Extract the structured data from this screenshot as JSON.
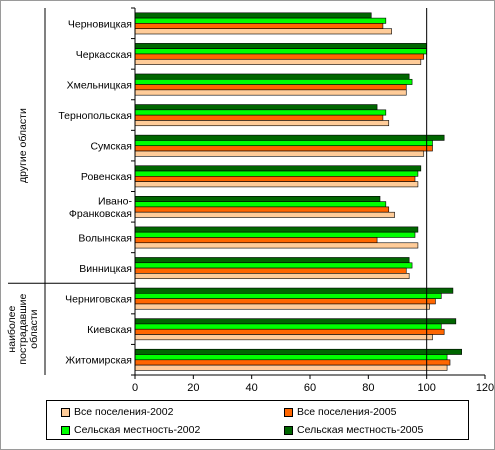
{
  "chart_data": {
    "type": "bar",
    "orientation": "horizontal",
    "categories": [
      "Черновицкая",
      "Черкасская",
      "Хмельницкая",
      "Тернопольская",
      "Сумская",
      "Ровенская",
      "Ивано-Франковская",
      "Волынская",
      "Винницкая",
      "Черниговская",
      "Киевская",
      "Житомирская"
    ],
    "category_lines": [
      [
        "Черновицкая"
      ],
      [
        "Черкасская"
      ],
      [
        "Хмельницкая"
      ],
      [
        "Тернопольская"
      ],
      [
        "Сумская"
      ],
      [
        "Ровенская"
      ],
      [
        "Ивано-",
        "Франковская"
      ],
      [
        "Волынская"
      ],
      [
        "Винницкая"
      ],
      [
        "Черниговская"
      ],
      [
        "Киевская"
      ],
      [
        "Житомирская"
      ]
    ],
    "groups": [
      {
        "label": "другие области",
        "lines": [
          "другие области"
        ],
        "categories": [
          "Черновицкая",
          "Черкасская",
          "Хмельницкая",
          "Тернопольская",
          "Сумская",
          "Ровенская",
          "Ивано-Франковская",
          "Волынская",
          "Винницкая"
        ]
      },
      {
        "label": "наиболее пострадавшие области",
        "lines": [
          "наиболее",
          "пострадавшие",
          "области"
        ],
        "categories": [
          "Черниговская",
          "Киевская",
          "Житомирская"
        ]
      }
    ],
    "series": [
      {
        "name": "Все поселения-2002",
        "color": "#ffcc99",
        "values": [
          88,
          98,
          93,
          87,
          99,
          97,
          89,
          97,
          94,
          101,
          102,
          107
        ]
      },
      {
        "name": "Все поселения-2005",
        "color": "#ff6600",
        "values": [
          85,
          99,
          93,
          85,
          102,
          96,
          87,
          83,
          93,
          103,
          106,
          108
        ]
      },
      {
        "name": "Сельская местность-2002",
        "color": "#00ff00",
        "values": [
          86,
          100,
          95,
          86,
          102,
          97,
          86,
          96,
          95,
          105,
          105,
          107
        ]
      },
      {
        "name": "Сельская местность-2005",
        "color": "#006600",
        "values": [
          81,
          100,
          94,
          83,
          106,
          98,
          84,
          97,
          94,
          109,
          110,
          112
        ]
      }
    ],
    "xlim": [
      0,
      120
    ],
    "xticks": [
      0,
      20,
      40,
      60,
      80,
      100,
      120
    ],
    "reference_line": 100,
    "grid": false,
    "legend_position": "bottom"
  }
}
